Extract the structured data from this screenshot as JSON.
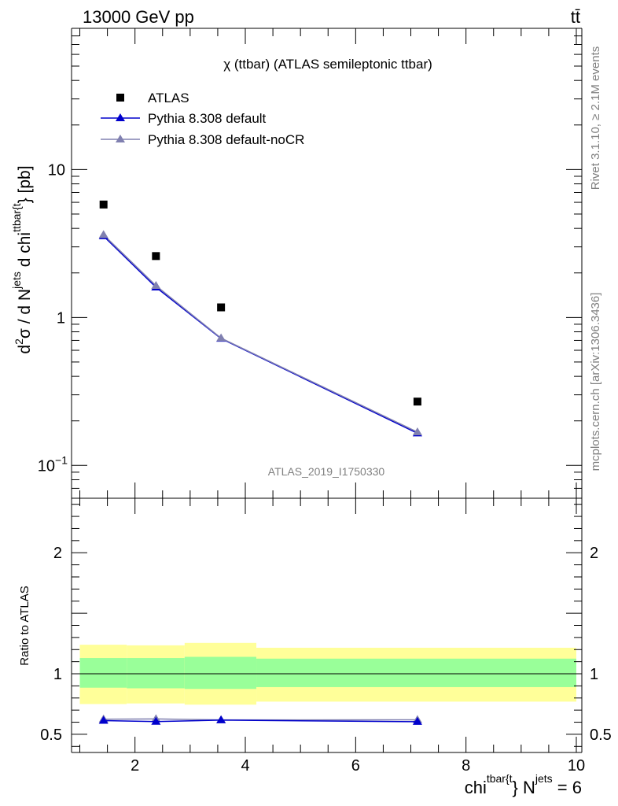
{
  "header": {
    "energy_label": "13000 GeV pp",
    "process_label": "tt̄"
  },
  "side_text": {
    "rivet": "Rivet 3.1.10, ≥ 2.1M events",
    "source": "mcplots.cern.ch [arXiv:1306.3436]"
  },
  "chart_data": [
    {
      "type": "scatter",
      "title": "χ (ttbar) (ATLAS semileptonic ttbar)",
      "analysis_tag": "ATLAS_2019_I1750330",
      "ylabel": {
        "prefix": "d",
        "sup2": "2",
        "mid": "σ / d N",
        "sup_jets": "jets",
        "mid2": " d chi",
        "sup_ttbar": "ttbar{t",
        "suffix": "} [pb]"
      },
      "yscale": "log",
      "ylim": [
        0.06,
        90
      ],
      "xlim": [
        0.85,
        10.1
      ],
      "y_ticks": [
        {
          "value": 10,
          "label": "10"
        },
        {
          "value": 1,
          "label": "1"
        },
        {
          "value": 0.1,
          "label": "10",
          "exp": "−1"
        }
      ],
      "legend": {
        "placement": "top-left",
        "entries": [
          "ATLAS",
          "Pythia 8.308 default",
          "Pythia 8.308 default-noCR"
        ]
      },
      "series": [
        {
          "name": "ATLAS",
          "marker": "square",
          "color": "#000000",
          "x": [
            1.43,
            2.38,
            3.56,
            7.12
          ],
          "y": [
            5.8,
            2.6,
            1.17,
            0.27
          ]
        },
        {
          "name": "Pythia 8.308 default",
          "marker": "triangle",
          "color": "#0000cc",
          "x": [
            1.43,
            2.38,
            3.56,
            7.12
          ],
          "y": [
            3.55,
            1.6,
            0.72,
            0.165
          ]
        },
        {
          "name": "Pythia 8.308 default-noCR",
          "marker": "triangle",
          "color": "#8080b0",
          "x": [
            1.43,
            2.38,
            3.56,
            7.12
          ],
          "y": [
            3.62,
            1.64,
            0.725,
            0.168
          ]
        }
      ]
    },
    {
      "type": "line",
      "title": "",
      "ylabel": "Ratio to ATLAS",
      "xlabel": {
        "base": "chi",
        "sup_ttbar": "tbar{t",
        "mid": "} N",
        "sup_jets": "jets",
        "suffix": " = 6"
      },
      "xlim": [
        0.85,
        10.1
      ],
      "ylim": [
        0.35,
        2.45
      ],
      "x_ticks": [
        {
          "value": 2,
          "label": "2"
        },
        {
          "value": 4,
          "label": "4"
        },
        {
          "value": 6,
          "label": "6"
        },
        {
          "value": 8,
          "label": "8"
        },
        {
          "value": 10,
          "label": "10"
        }
      ],
      "y_ticks": [
        {
          "value": 0.5,
          "label": "0.5"
        },
        {
          "value": 1,
          "label": "1"
        },
        {
          "value": 2,
          "label": "2"
        }
      ],
      "uncertainty_bands": [
        {
          "x_low": 1.0,
          "x_high": 1.85,
          "inner": [
            0.885,
            1.13
          ],
          "outer": [
            0.75,
            1.24
          ]
        },
        {
          "x_low": 1.85,
          "x_high": 2.9,
          "inner": [
            0.88,
            1.13
          ],
          "outer": [
            0.755,
            1.235
          ]
        },
        {
          "x_low": 2.9,
          "x_high": 4.2,
          "inner": [
            0.875,
            1.14
          ],
          "outer": [
            0.745,
            1.255
          ]
        },
        {
          "x_low": 4.2,
          "x_high": 10.0,
          "inner": [
            0.89,
            1.125
          ],
          "outer": [
            0.77,
            1.215
          ]
        }
      ],
      "band_colors": {
        "inner": "#99ff99",
        "outer": "#ffff99"
      },
      "series": [
        {
          "name": "Pythia 8.308 default",
          "color": "#0000cc",
          "x": [
            1.43,
            2.38,
            3.56,
            7.12
          ],
          "y": [
            0.613,
            0.605,
            0.617,
            0.604
          ]
        },
        {
          "name": "Pythia 8.308 default-noCR",
          "color": "#8080b0",
          "x": [
            1.43,
            2.38,
            3.56,
            7.12
          ],
          "y": [
            0.625,
            0.627,
            0.619,
            0.62
          ]
        }
      ]
    }
  ]
}
